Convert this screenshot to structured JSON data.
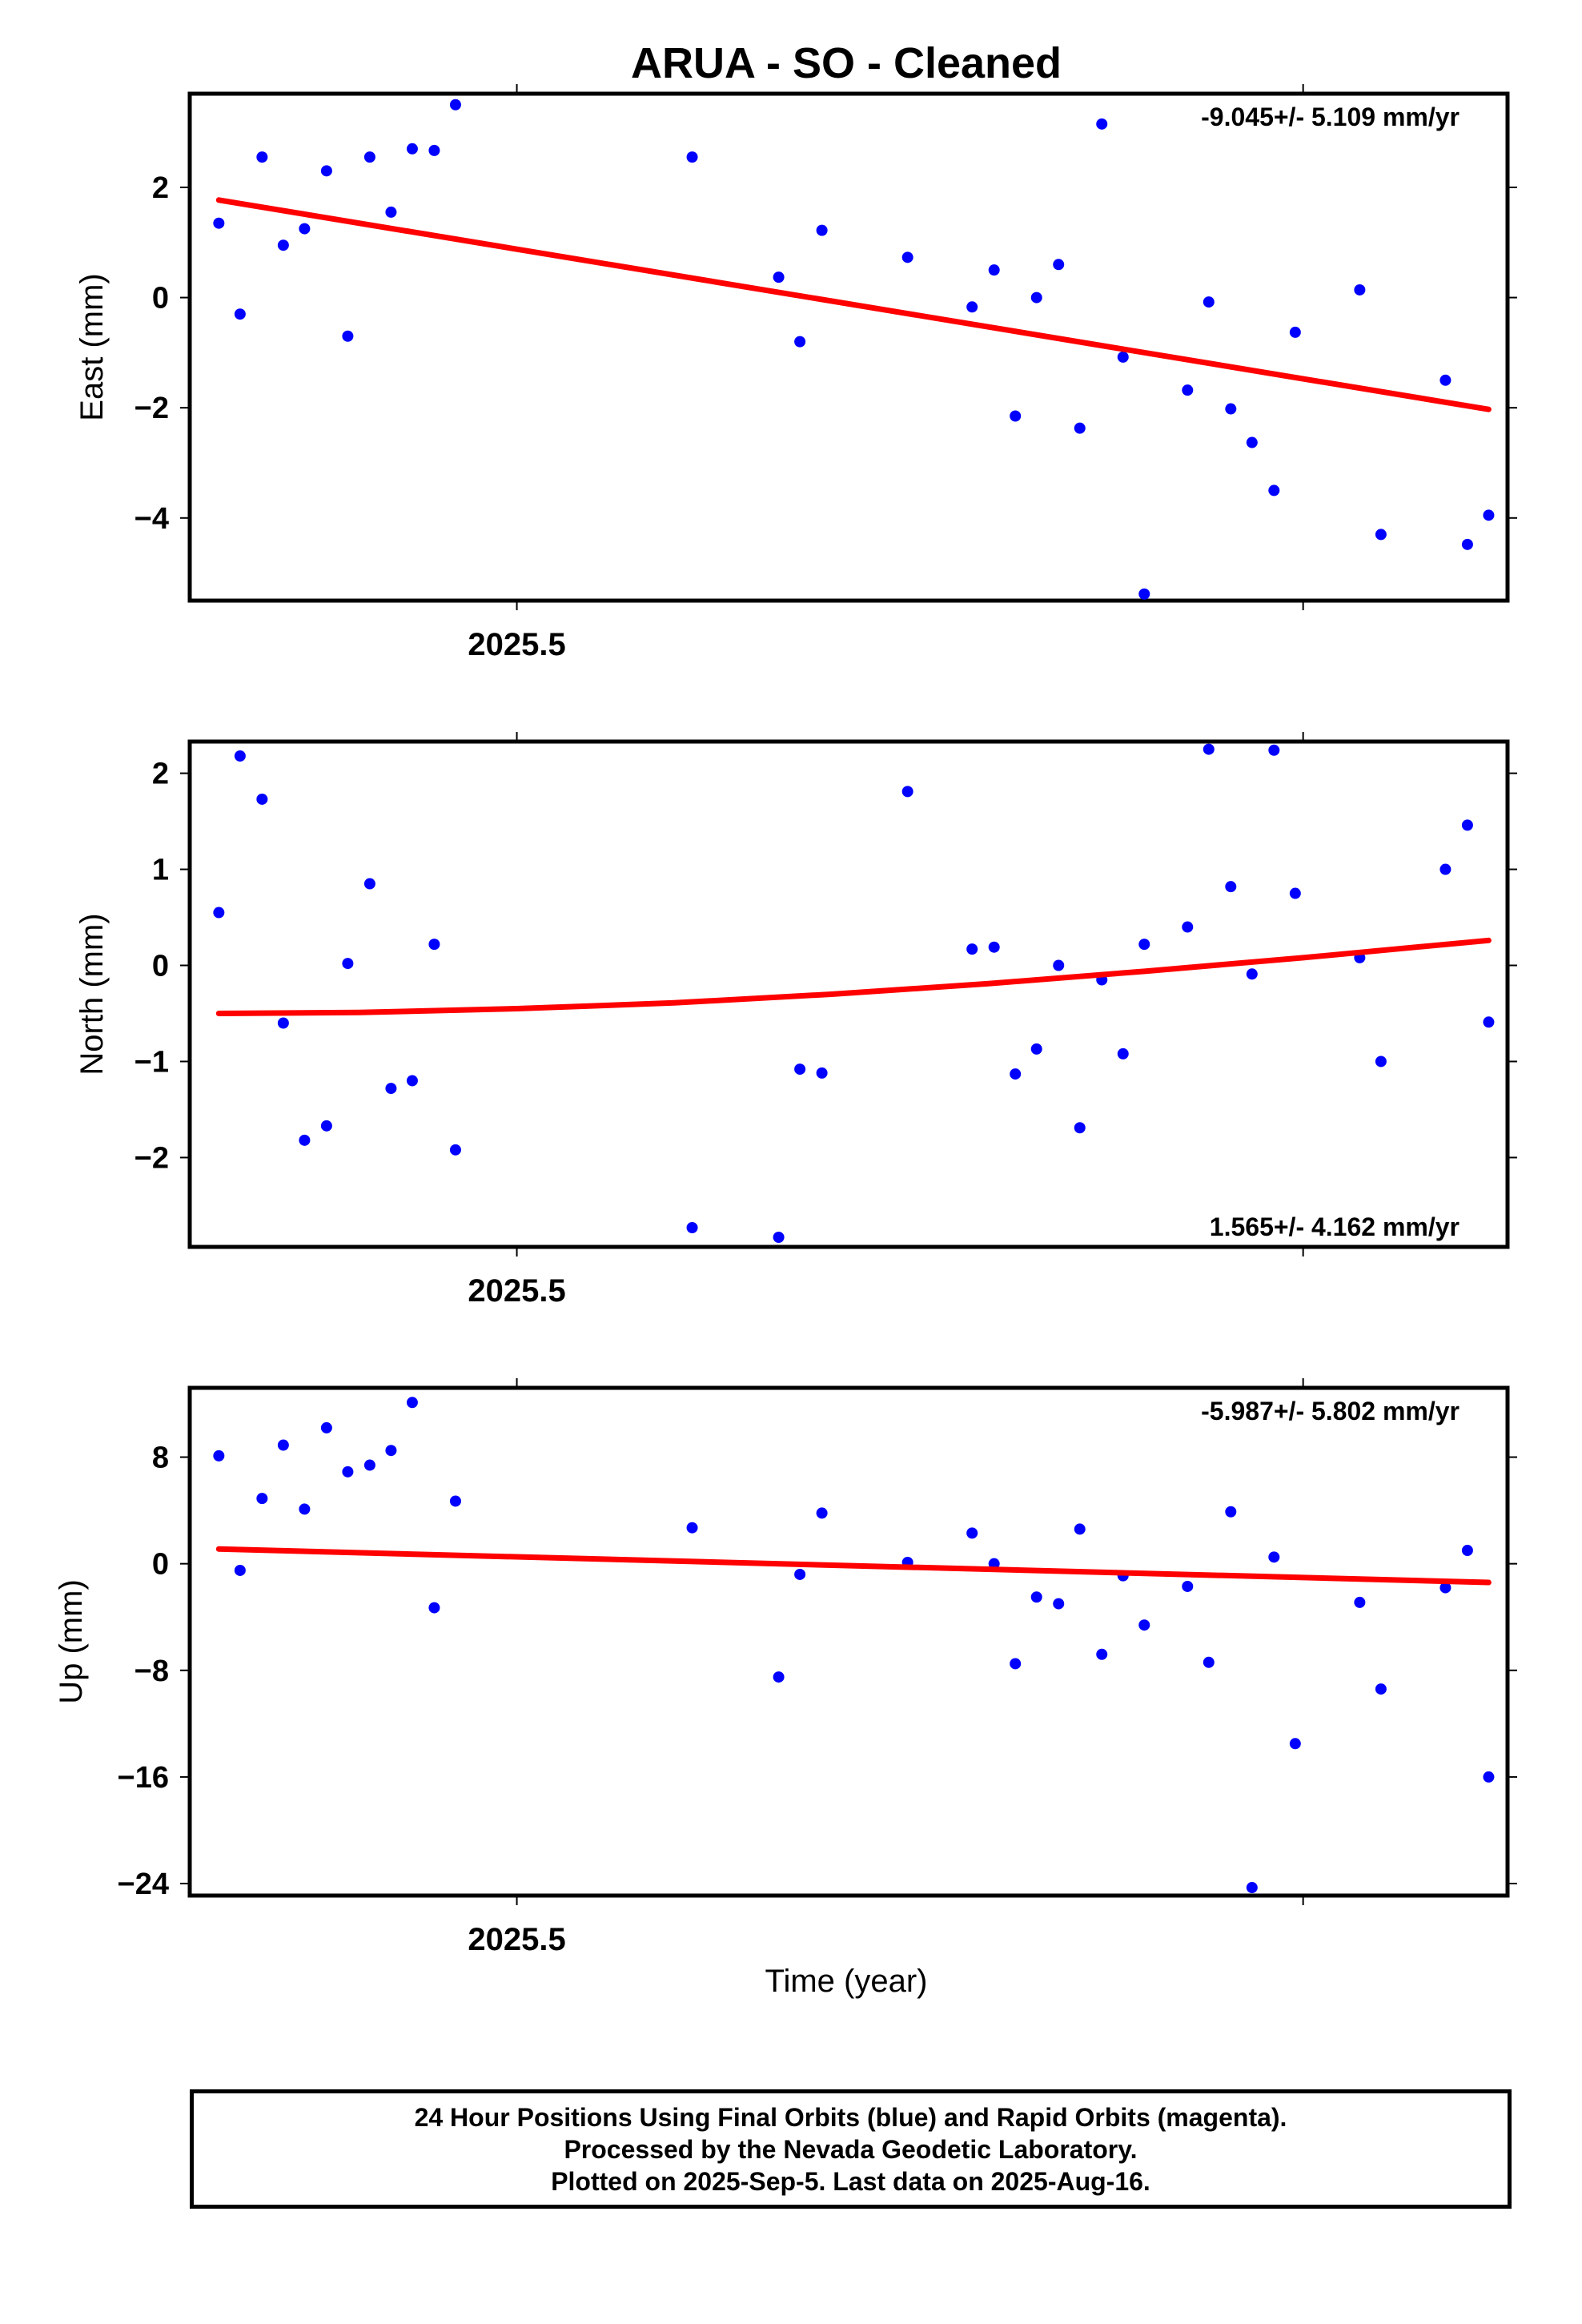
{
  "title": "ARUA  - SO - Cleaned",
  "xlabel": "Time (year)",
  "colors": {
    "points": "#0000ff",
    "fit": "#ff0000",
    "frame": "#000000"
  },
  "footer": {
    "line1": "24 Hour Positions Using Final Orbits (blue) and Rapid Orbits (magenta).",
    "line2": "Processed by the Nevada Geodetic Laboratory.",
    "line3": "Plotted on 2025-Sep-5. Last data on 2025-Aug-16."
  },
  "chart_data": [
    {
      "type": "scatter",
      "name": "east",
      "ylabel": "East (mm)",
      "rate_label": "-9.045+/- 5.109 mm/yr",
      "rate_position": "top-right",
      "xlim": [
        2025.4584,
        2025.626
      ],
      "ylim": [
        -5.5,
        3.7
      ],
      "yticks": [
        2,
        0,
        -2,
        -4
      ],
      "ytick_labels": [
        "2",
        "0",
        "−2",
        "−4"
      ],
      "xticks": [
        2025.5,
        2025.6
      ],
      "xtick_labels": [
        "2025.5",
        ""
      ],
      "points": [
        {
          "x": 2025.4621,
          "y": 1.35
        },
        {
          "x": 2025.4648,
          "y": -0.3
        },
        {
          "x": 2025.4676,
          "y": 2.55
        },
        {
          "x": 2025.4703,
          "y": 0.95
        },
        {
          "x": 2025.473,
          "y": 1.25
        },
        {
          "x": 2025.4758,
          "y": 2.3
        },
        {
          "x": 2025.4785,
          "y": -0.7
        },
        {
          "x": 2025.4813,
          "y": 2.55
        },
        {
          "x": 2025.484,
          "y": 1.55
        },
        {
          "x": 2025.4867,
          "y": 2.7
        },
        {
          "x": 2025.4895,
          "y": 2.67
        },
        {
          "x": 2025.4922,
          "y": 3.5
        },
        {
          "x": 2025.5223,
          "y": 2.55
        },
        {
          "x": 2025.5333,
          "y": 0.37
        },
        {
          "x": 2025.536,
          "y": -0.8
        },
        {
          "x": 2025.5388,
          "y": 1.22
        },
        {
          "x": 2025.5497,
          "y": 0.73
        },
        {
          "x": 2025.5579,
          "y": -0.17
        },
        {
          "x": 2025.5607,
          "y": 0.5
        },
        {
          "x": 2025.5634,
          "y": -2.15
        },
        {
          "x": 2025.5661,
          "y": 0.0
        },
        {
          "x": 2025.5689,
          "y": 0.6
        },
        {
          "x": 2025.5716,
          "y": -2.37
        },
        {
          "x": 2025.5744,
          "y": 3.15
        },
        {
          "x": 2025.5771,
          "y": -1.08
        },
        {
          "x": 2025.5798,
          "y": -5.38
        },
        {
          "x": 2025.5853,
          "y": -1.68
        },
        {
          "x": 2025.588,
          "y": -0.08
        },
        {
          "x": 2025.5908,
          "y": -2.02
        },
        {
          "x": 2025.5935,
          "y": -2.63
        },
        {
          "x": 2025.5963,
          "y": -3.5
        },
        {
          "x": 2025.599,
          "y": -0.63
        },
        {
          "x": 2025.6072,
          "y": 0.14
        },
        {
          "x": 2025.6099,
          "y": -4.3
        },
        {
          "x": 2025.6181,
          "y": -1.5
        },
        {
          "x": 2025.6209,
          "y": -4.48
        },
        {
          "x": 2025.6236,
          "y": -3.95
        }
      ],
      "fit": [
        {
          "x": 2025.4621,
          "y": 1.77
        },
        {
          "x": 2025.6236,
          "y": -2.03
        }
      ]
    },
    {
      "type": "scatter",
      "name": "north",
      "ylabel": "North (mm)",
      "rate_label": "1.565+/- 4.162 mm/yr",
      "rate_position": "bottom-right",
      "xlim": [
        2025.4584,
        2025.626
      ],
      "ylim": [
        -2.93,
        2.33
      ],
      "yticks": [
        2,
        1,
        0,
        -1,
        -2
      ],
      "ytick_labels": [
        "2",
        "1",
        "0",
        "−1",
        "−2"
      ],
      "xticks": [
        2025.5,
        2025.6
      ],
      "xtick_labels": [
        "2025.5",
        ""
      ],
      "points": [
        {
          "x": 2025.4621,
          "y": 0.55
        },
        {
          "x": 2025.4648,
          "y": 2.18
        },
        {
          "x": 2025.4676,
          "y": 1.73
        },
        {
          "x": 2025.4703,
          "y": -0.6
        },
        {
          "x": 2025.473,
          "y": -1.82
        },
        {
          "x": 2025.4758,
          "y": -1.67
        },
        {
          "x": 2025.4785,
          "y": 0.02
        },
        {
          "x": 2025.4813,
          "y": 0.85
        },
        {
          "x": 2025.484,
          "y": -1.28
        },
        {
          "x": 2025.4867,
          "y": -1.2
        },
        {
          "x": 2025.4895,
          "y": 0.22
        },
        {
          "x": 2025.4922,
          "y": -1.92
        },
        {
          "x": 2025.5223,
          "y": -2.73
        },
        {
          "x": 2025.5333,
          "y": -2.83
        },
        {
          "x": 2025.536,
          "y": -1.08
        },
        {
          "x": 2025.5388,
          "y": -1.12
        },
        {
          "x": 2025.5497,
          "y": 1.81
        },
        {
          "x": 2025.5579,
          "y": 0.17
        },
        {
          "x": 2025.5607,
          "y": 0.19
        },
        {
          "x": 2025.5634,
          "y": -1.13
        },
        {
          "x": 2025.5661,
          "y": -0.87
        },
        {
          "x": 2025.5689,
          "y": 0.0
        },
        {
          "x": 2025.5716,
          "y": -1.69
        },
        {
          "x": 2025.5744,
          "y": -0.15
        },
        {
          "x": 2025.5771,
          "y": -0.92
        },
        {
          "x": 2025.5798,
          "y": 0.22
        },
        {
          "x": 2025.5853,
          "y": 0.4
        },
        {
          "x": 2025.588,
          "y": 2.25
        },
        {
          "x": 2025.5908,
          "y": 0.82
        },
        {
          "x": 2025.5935,
          "y": -0.09
        },
        {
          "x": 2025.5963,
          "y": 2.24
        },
        {
          "x": 2025.599,
          "y": 0.75
        },
        {
          "x": 2025.6072,
          "y": 0.08
        },
        {
          "x": 2025.6099,
          "y": -1.0
        },
        {
          "x": 2025.6181,
          "y": 1.0
        },
        {
          "x": 2025.6209,
          "y": 1.46
        },
        {
          "x": 2025.6236,
          "y": -0.59
        }
      ],
      "fit": [
        {
          "x": 2025.4621,
          "y": -0.5
        },
        {
          "x": 2025.48,
          "y": -0.49
        },
        {
          "x": 2025.5,
          "y": -0.45
        },
        {
          "x": 2025.52,
          "y": -0.39
        },
        {
          "x": 2025.54,
          "y": -0.3
        },
        {
          "x": 2025.56,
          "y": -0.19
        },
        {
          "x": 2025.58,
          "y": -0.06
        },
        {
          "x": 2025.6,
          "y": 0.08
        },
        {
          "x": 2025.6236,
          "y": 0.26
        }
      ]
    },
    {
      "type": "scatter",
      "name": "up",
      "ylabel": "Up (mm)",
      "rate_label": "-5.987+/- 5.802 mm/yr",
      "rate_position": "top-right",
      "xlim": [
        2025.4584,
        2025.626
      ],
      "ylim": [
        -24.9,
        13.2
      ],
      "yticks": [
        8,
        0,
        -8,
        -16,
        -24
      ],
      "ytick_labels": [
        "8",
        "0",
        "−8",
        "−16",
        "−24"
      ],
      "xticks": [
        2025.5,
        2025.6
      ],
      "xtick_labels": [
        "2025.5",
        ""
      ],
      "points": [
        {
          "x": 2025.4621,
          "y": 8.1
        },
        {
          "x": 2025.4648,
          "y": -0.5
        },
        {
          "x": 2025.4676,
          "y": 4.9
        },
        {
          "x": 2025.4703,
          "y": 8.9
        },
        {
          "x": 2025.473,
          "y": 4.1
        },
        {
          "x": 2025.4758,
          "y": 10.2
        },
        {
          "x": 2025.4785,
          "y": 6.9
        },
        {
          "x": 2025.4813,
          "y": 7.4
        },
        {
          "x": 2025.484,
          "y": 8.5
        },
        {
          "x": 2025.4867,
          "y": 12.1
        },
        {
          "x": 2025.4895,
          "y": -3.3
        },
        {
          "x": 2025.4922,
          "y": 4.7
        },
        {
          "x": 2025.5223,
          "y": 2.7
        },
        {
          "x": 2025.5333,
          "y": -8.5
        },
        {
          "x": 2025.536,
          "y": -0.8
        },
        {
          "x": 2025.5388,
          "y": 3.8
        },
        {
          "x": 2025.5497,
          "y": 0.1
        },
        {
          "x": 2025.5579,
          "y": 2.3
        },
        {
          "x": 2025.5607,
          "y": 0.0
        },
        {
          "x": 2025.5634,
          "y": -7.5
        },
        {
          "x": 2025.5661,
          "y": -2.5
        },
        {
          "x": 2025.5689,
          "y": -3.0
        },
        {
          "x": 2025.5716,
          "y": 2.6
        },
        {
          "x": 2025.5744,
          "y": -6.8
        },
        {
          "x": 2025.5771,
          "y": -0.9
        },
        {
          "x": 2025.5798,
          "y": -4.6
        },
        {
          "x": 2025.5853,
          "y": -1.7
        },
        {
          "x": 2025.588,
          "y": -7.4
        },
        {
          "x": 2025.5908,
          "y": 3.9
        },
        {
          "x": 2025.5935,
          "y": -24.3
        },
        {
          "x": 2025.5963,
          "y": 0.5
        },
        {
          "x": 2025.599,
          "y": -13.5
        },
        {
          "x": 2025.6072,
          "y": -2.9
        },
        {
          "x": 2025.6099,
          "y": -9.4
        },
        {
          "x": 2025.6181,
          "y": -1.8
        },
        {
          "x": 2025.6209,
          "y": 1.0
        },
        {
          "x": 2025.6236,
          "y": -16.0
        }
      ],
      "fit": [
        {
          "x": 2025.4621,
          "y": 1.1
        },
        {
          "x": 2025.6236,
          "y": -1.4
        }
      ]
    }
  ]
}
